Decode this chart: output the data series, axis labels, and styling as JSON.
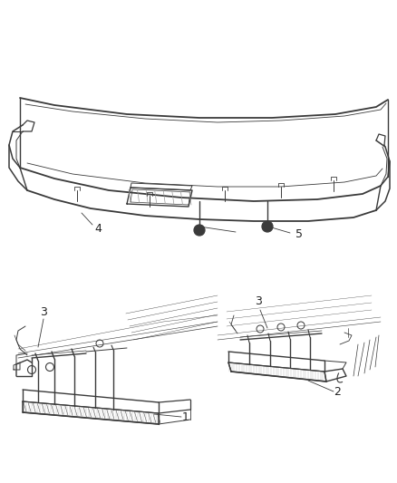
{
  "background_color": "#ffffff",
  "line_color": "#3a3a3a",
  "line_color_light": "#888888",
  "fig_width": 4.38,
  "fig_height": 5.33,
  "dpi": 100,
  "label_fontsize": 9,
  "label_color": "#222222"
}
